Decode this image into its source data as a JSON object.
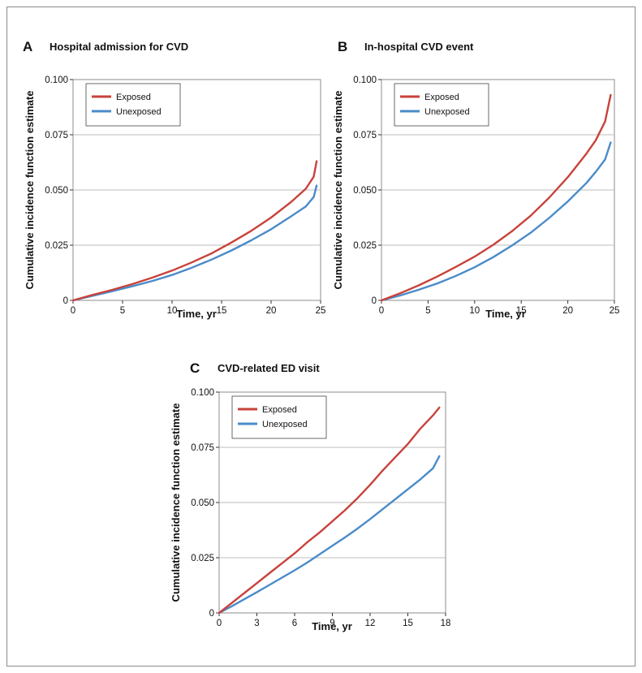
{
  "chart_data": [
    {
      "type": "line",
      "letter": "A",
      "title": "Hospital admission for CVD",
      "xlabel": "Time, yr",
      "ylabel": "Cumulative incidence function estimate",
      "xlim": [
        0,
        25
      ],
      "ylim": [
        0,
        0.1
      ],
      "xticks": [
        0,
        5,
        10,
        15,
        20,
        25
      ],
      "xtick_labels": [
        "0",
        "5",
        "10",
        "15",
        "20",
        "25"
      ],
      "yticks": [
        0,
        0.025,
        0.05,
        0.075,
        0.1
      ],
      "ytick_labels": [
        "0",
        "0.025",
        "0.050",
        "0.075",
        "0.100"
      ],
      "grid": "horizontal",
      "legend": "top-left",
      "series": [
        {
          "name": "Exposed",
          "color": "#c8423b",
          "x": [
            0,
            2,
            4,
            6,
            8,
            10,
            12,
            14,
            16,
            18,
            20,
            22,
            23.5,
            24.3,
            24.6
          ],
          "y": [
            0,
            0.0025,
            0.0048,
            0.0074,
            0.0103,
            0.0135,
            0.0172,
            0.0213,
            0.0262,
            0.0315,
            0.0375,
            0.0445,
            0.0505,
            0.056,
            0.063
          ]
        },
        {
          "name": "Unexposed",
          "color": "#4a8bc9",
          "x": [
            0,
            2,
            4,
            6,
            8,
            10,
            12,
            14,
            16,
            18,
            20,
            22,
            23.5,
            24.3,
            24.6
          ],
          "y": [
            0,
            0.0021,
            0.0042,
            0.0064,
            0.0088,
            0.0115,
            0.0148,
            0.0185,
            0.0226,
            0.0272,
            0.0322,
            0.038,
            0.0425,
            0.0468,
            0.052
          ]
        }
      ]
    },
    {
      "type": "line",
      "letter": "B",
      "title": "In-hospital CVD event",
      "xlabel": "Time, yr",
      "ylabel": "Cumulative incidence function estimate",
      "xlim": [
        0,
        25
      ],
      "ylim": [
        0,
        0.1
      ],
      "xticks": [
        0,
        5,
        10,
        15,
        20,
        25
      ],
      "xtick_labels": [
        "0",
        "5",
        "10",
        "15",
        "20",
        "25"
      ],
      "yticks": [
        0,
        0.025,
        0.05,
        0.075,
        0.1
      ],
      "ytick_labels": [
        "0",
        "0.025",
        "0.050",
        "0.075",
        "0.100"
      ],
      "grid": "horizontal",
      "legend": "top-left",
      "series": [
        {
          "name": "Exposed",
          "color": "#c8423b",
          "x": [
            0,
            2,
            4,
            6,
            8,
            10,
            12,
            14,
            16,
            18,
            20,
            22,
            23,
            24,
            24.6
          ],
          "y": [
            0,
            0.0032,
            0.0068,
            0.0108,
            0.0152,
            0.0198,
            0.0252,
            0.0313,
            0.0383,
            0.0465,
            0.0558,
            0.0665,
            0.0725,
            0.081,
            0.093
          ]
        },
        {
          "name": "Unexposed",
          "color": "#4a8bc9",
          "x": [
            0,
            2,
            4,
            6,
            8,
            10,
            12,
            14,
            16,
            18,
            20,
            22,
            23,
            24,
            24.6
          ],
          "y": [
            0,
            0.0022,
            0.0048,
            0.0077,
            0.0111,
            0.015,
            0.0196,
            0.0248,
            0.0306,
            0.0373,
            0.0448,
            0.0532,
            0.0582,
            0.0638,
            0.0715
          ]
        }
      ]
    },
    {
      "type": "line",
      "letter": "C",
      "title": "CVD-related ED visit",
      "xlabel": "Time, yr",
      "ylabel": "Cumulative incidence function estimate",
      "xlim": [
        0,
        18
      ],
      "ylim": [
        0,
        0.1
      ],
      "xticks": [
        0,
        3,
        6,
        9,
        12,
        15,
        18
      ],
      "xtick_labels": [
        "0",
        "3",
        "6",
        "9",
        "12",
        "15",
        "18"
      ],
      "yticks": [
        0,
        0.025,
        0.05,
        0.075,
        0.1
      ],
      "ytick_labels": [
        "0",
        "0.025",
        "0.050",
        "0.075",
        "0.100"
      ],
      "grid": "horizontal",
      "legend": "top-left",
      "series": [
        {
          "name": "Exposed",
          "color": "#c8423b",
          "x": [
            0,
            1,
            2,
            3,
            4,
            5,
            6,
            7,
            8,
            9,
            10,
            11,
            12,
            13,
            14,
            15,
            16,
            17,
            17.5
          ],
          "y": [
            0,
            0.0045,
            0.009,
            0.0135,
            0.018,
            0.0225,
            0.027,
            0.032,
            0.0365,
            0.0415,
            0.0465,
            0.052,
            0.058,
            0.0645,
            0.0705,
            0.0765,
            0.0835,
            0.0895,
            0.093
          ]
        },
        {
          "name": "Unexposed",
          "color": "#4a8bc9",
          "x": [
            0,
            1,
            2,
            3,
            4,
            5,
            6,
            7,
            8,
            9,
            10,
            11,
            12,
            13,
            14,
            15,
            16,
            17,
            17.5
          ],
          "y": [
            0,
            0.003,
            0.0062,
            0.0094,
            0.0127,
            0.016,
            0.0193,
            0.0228,
            0.0266,
            0.0304,
            0.0342,
            0.0382,
            0.0425,
            0.047,
            0.0515,
            0.056,
            0.0605,
            0.0655,
            0.071
          ]
        }
      ]
    }
  ]
}
